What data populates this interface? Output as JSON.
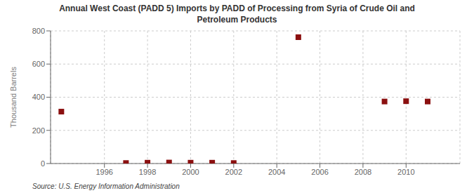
{
  "chart_data": {
    "type": "scatter",
    "title": "Annual West Coast (PADD 5) Imports by PADD of Processing from Syria of Crude Oil and\nPetroleum Products",
    "ylabel": "Thousand Barrels",
    "source": "Source: U.S. Energy Information Administration",
    "x": [
      1994,
      1997,
      1998,
      1999,
      2000,
      2001,
      2002,
      2005,
      2009,
      2010,
      2011
    ],
    "values": [
      313,
      3,
      5,
      6,
      5,
      5,
      3,
      762,
      374,
      376,
      374
    ],
    "color": "#8b1010",
    "marker": "square",
    "xlim": [
      1993.5,
      2012.5
    ],
    "ylim": [
      0,
      800
    ],
    "xticks": [
      1996,
      1998,
      2000,
      2002,
      2004,
      2006,
      2008,
      2010
    ],
    "yticks": [
      0,
      200,
      400,
      600,
      800
    ],
    "grid": true
  }
}
